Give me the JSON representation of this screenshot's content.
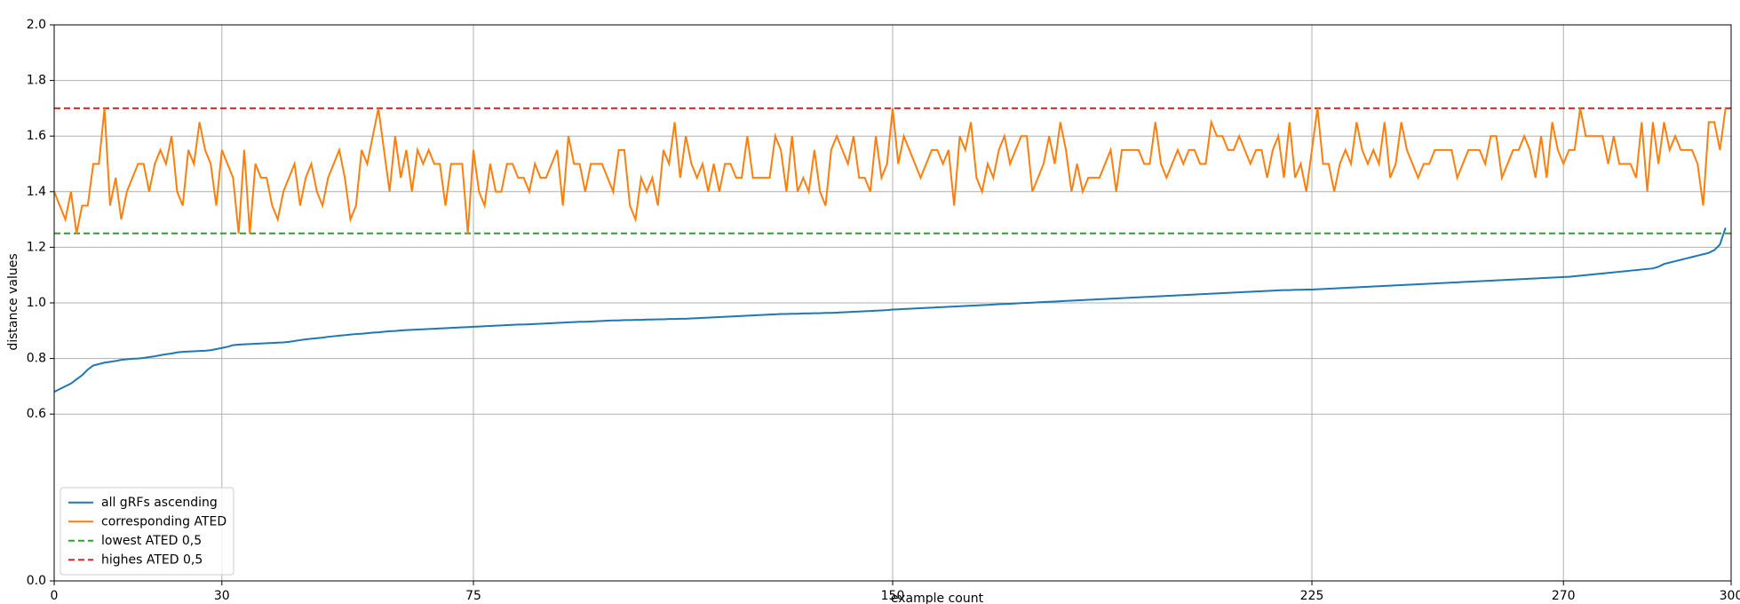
{
  "chart_data": {
    "type": "line",
    "xlabel": "example count",
    "ylabel": "distance values",
    "xlim": [
      0,
      300
    ],
    "xticks": [
      0,
      30,
      75,
      150,
      225,
      270,
      300
    ],
    "ylim": [
      0,
      2
    ],
    "yticks": [
      {
        "value": 0,
        "label": "0.0"
      },
      0.6,
      0.8,
      {
        "value": 1,
        "label": "1.0"
      },
      1.2,
      1.4,
      1.6,
      1.8,
      {
        "value": 2,
        "label": "2.0"
      }
    ],
    "grid": true,
    "legend": "lower left",
    "x": [
      0,
      1,
      2,
      3,
      4,
      5,
      6,
      7,
      8,
      9,
      10,
      11,
      12,
      13,
      14,
      15,
      16,
      17,
      18,
      19,
      20,
      21,
      22,
      23,
      24,
      25,
      26,
      27,
      28,
      29,
      30,
      31,
      32,
      33,
      34,
      35,
      36,
      37,
      38,
      39,
      40,
      41,
      42,
      43,
      44,
      45,
      46,
      47,
      48,
      49,
      50,
      51,
      52,
      53,
      54,
      55,
      56,
      57,
      58,
      59,
      60,
      61,
      62,
      63,
      64,
      65,
      66,
      67,
      68,
      69,
      70,
      71,
      72,
      73,
      74,
      75,
      76,
      77,
      78,
      79,
      80,
      81,
      82,
      83,
      84,
      85,
      86,
      87,
      88,
      89,
      90,
      91,
      92,
      93,
      94,
      95,
      96,
      97,
      98,
      99,
      100,
      101,
      102,
      103,
      104,
      105,
      106,
      107,
      108,
      109,
      110,
      111,
      112,
      113,
      114,
      115,
      116,
      117,
      118,
      119,
      120,
      121,
      122,
      123,
      124,
      125,
      126,
      127,
      128,
      129,
      130,
      131,
      132,
      133,
      134,
      135,
      136,
      137,
      138,
      139,
      140,
      141,
      142,
      143,
      144,
      145,
      146,
      147,
      148,
      149,
      150,
      151,
      152,
      153,
      154,
      155,
      156,
      157,
      158,
      159,
      160,
      161,
      162,
      163,
      164,
      165,
      166,
      167,
      168,
      169,
      170,
      171,
      172,
      173,
      174,
      175,
      176,
      177,
      178,
      179,
      180,
      181,
      182,
      183,
      184,
      185,
      186,
      187,
      188,
      189,
      190,
      191,
      192,
      193,
      194,
      195,
      196,
      197,
      198,
      199,
      200,
      201,
      202,
      203,
      204,
      205,
      206,
      207,
      208,
      209,
      210,
      211,
      212,
      213,
      214,
      215,
      216,
      217,
      218,
      219,
      220,
      221,
      222,
      223,
      224,
      225,
      226,
      227,
      228,
      229,
      230,
      231,
      232,
      233,
      234,
      235,
      236,
      237,
      238,
      239,
      240,
      241,
      242,
      243,
      244,
      245,
      246,
      247,
      248,
      249,
      250,
      251,
      252,
      253,
      254,
      255,
      256,
      257,
      258,
      259,
      260,
      261,
      262,
      263,
      264,
      265,
      266,
      267,
      268,
      269,
      270,
      271,
      272,
      273,
      274,
      275,
      276,
      277,
      278,
      279,
      280,
      281,
      282,
      283,
      284,
      285,
      286,
      287,
      288,
      289,
      290,
      291,
      292,
      293,
      294,
      295,
      296,
      297,
      298,
      299
    ],
    "series": [
      {
        "name": "all gRFs ascending",
        "color": "#1f77b4",
        "values": [
          0.68,
          0.69,
          0.7,
          0.71,
          0.725,
          0.74,
          0.76,
          0.775,
          0.78,
          0.785,
          0.788,
          0.791,
          0.795,
          0.797,
          0.799,
          0.8,
          0.802,
          0.805,
          0.808,
          0.812,
          0.815,
          0.818,
          0.822,
          0.824,
          0.825,
          0.826,
          0.827,
          0.828,
          0.83,
          0.834,
          0.838,
          0.842,
          0.848,
          0.85,
          0.851,
          0.852,
          0.853,
          0.854,
          0.855,
          0.856,
          0.857,
          0.858,
          0.86,
          0.863,
          0.866,
          0.869,
          0.871,
          0.873,
          0.875,
          0.878,
          0.88,
          0.882,
          0.884,
          0.886,
          0.888,
          0.889,
          0.891,
          0.893,
          0.894,
          0.896,
          0.898,
          0.899,
          0.901,
          0.902,
          0.903,
          0.904,
          0.905,
          0.906,
          0.907,
          0.908,
          0.909,
          0.91,
          0.911,
          0.912,
          0.913,
          0.914,
          0.915,
          0.916,
          0.917,
          0.918,
          0.919,
          0.92,
          0.921,
          0.922,
          0.922,
          0.923,
          0.924,
          0.925,
          0.926,
          0.927,
          0.928,
          0.929,
          0.93,
          0.931,
          0.932,
          0.932,
          0.933,
          0.934,
          0.935,
          0.936,
          0.937,
          0.937,
          0.938,
          0.938,
          0.939,
          0.939,
          0.94,
          0.94,
          0.941,
          0.941,
          0.942,
          0.942,
          0.943,
          0.943,
          0.944,
          0.945,
          0.946,
          0.947,
          0.948,
          0.949,
          0.95,
          0.951,
          0.952,
          0.953,
          0.954,
          0.955,
          0.956,
          0.957,
          0.958,
          0.959,
          0.96,
          0.96,
          0.961,
          0.961,
          0.962,
          0.962,
          0.963,
          0.963,
          0.964,
          0.964,
          0.965,
          0.966,
          0.967,
          0.968,
          0.969,
          0.97,
          0.971,
          0.972,
          0.973,
          0.974,
          0.976,
          0.977,
          0.978,
          0.979,
          0.98,
          0.981,
          0.982,
          0.983,
          0.984,
          0.985,
          0.986,
          0.987,
          0.988,
          0.989,
          0.99,
          0.991,
          0.992,
          0.993,
          0.994,
          0.995,
          0.996,
          0.997,
          0.998,
          0.999,
          1.0,
          1.001,
          1.002,
          1.003,
          1.004,
          1.005,
          1.006,
          1.007,
          1.008,
          1.009,
          1.01,
          1.011,
          1.012,
          1.013,
          1.014,
          1.015,
          1.016,
          1.017,
          1.018,
          1.019,
          1.02,
          1.021,
          1.022,
          1.023,
          1.024,
          1.025,
          1.026,
          1.027,
          1.028,
          1.029,
          1.03,
          1.031,
          1.032,
          1.033,
          1.034,
          1.035,
          1.036,
          1.037,
          1.038,
          1.039,
          1.04,
          1.041,
          1.042,
          1.043,
          1.044,
          1.045,
          1.046,
          1.046,
          1.047,
          1.047,
          1.048,
          1.048,
          1.049,
          1.05,
          1.051,
          1.052,
          1.053,
          1.054,
          1.055,
          1.056,
          1.057,
          1.058,
          1.059,
          1.06,
          1.061,
          1.062,
          1.063,
          1.064,
          1.065,
          1.066,
          1.067,
          1.068,
          1.069,
          1.07,
          1.071,
          1.072,
          1.073,
          1.074,
          1.075,
          1.076,
          1.077,
          1.078,
          1.079,
          1.08,
          1.081,
          1.082,
          1.083,
          1.084,
          1.085,
          1.086,
          1.087,
          1.088,
          1.089,
          1.09,
          1.091,
          1.092,
          1.093,
          1.094,
          1.096,
          1.098,
          1.1,
          1.102,
          1.104,
          1.106,
          1.108,
          1.11,
          1.112,
          1.114,
          1.116,
          1.118,
          1.12,
          1.122,
          1.124,
          1.13,
          1.14,
          1.145,
          1.15,
          1.155,
          1.16,
          1.165,
          1.17,
          1.175,
          1.18,
          1.19,
          1.21,
          1.27
        ]
      },
      {
        "name": "corresponding ATED",
        "color": "#ff7f0e",
        "values": [
          1.4,
          1.35,
          1.3,
          1.4,
          1.25,
          1.35,
          1.35,
          1.5,
          1.5,
          1.7,
          1.35,
          1.45,
          1.3,
          1.4,
          1.45,
          1.5,
          1.5,
          1.4,
          1.5,
          1.55,
          1.5,
          1.6,
          1.4,
          1.35,
          1.55,
          1.5,
          1.65,
          1.55,
          1.5,
          1.35,
          1.55,
          1.5,
          1.45,
          1.25,
          1.55,
          1.25,
          1.5,
          1.45,
          1.45,
          1.35,
          1.3,
          1.4,
          1.45,
          1.5,
          1.35,
          1.45,
          1.5,
          1.4,
          1.35,
          1.45,
          1.5,
          1.55,
          1.45,
          1.3,
          1.35,
          1.55,
          1.5,
          1.6,
          1.7,
          1.55,
          1.4,
          1.6,
          1.45,
          1.55,
          1.4,
          1.55,
          1.5,
          1.55,
          1.5,
          1.5,
          1.35,
          1.5,
          1.5,
          1.5,
          1.25,
          1.55,
          1.4,
          1.35,
          1.5,
          1.4,
          1.4,
          1.5,
          1.5,
          1.45,
          1.45,
          1.4,
          1.5,
          1.45,
          1.45,
          1.5,
          1.55,
          1.35,
          1.6,
          1.5,
          1.5,
          1.4,
          1.5,
          1.5,
          1.5,
          1.45,
          1.4,
          1.55,
          1.55,
          1.35,
          1.3,
          1.45,
          1.4,
          1.45,
          1.35,
          1.55,
          1.5,
          1.65,
          1.45,
          1.6,
          1.5,
          1.45,
          1.5,
          1.4,
          1.5,
          1.4,
          1.5,
          1.5,
          1.45,
          1.45,
          1.6,
          1.45,
          1.45,
          1.45,
          1.45,
          1.6,
          1.55,
          1.4,
          1.6,
          1.4,
          1.45,
          1.4,
          1.55,
          1.4,
          1.35,
          1.55,
          1.6,
          1.55,
          1.5,
          1.6,
          1.45,
          1.45,
          1.4,
          1.6,
          1.45,
          1.5,
          1.7,
          1.5,
          1.6,
          1.55,
          1.5,
          1.45,
          1.5,
          1.55,
          1.55,
          1.5,
          1.55,
          1.35,
          1.6,
          1.55,
          1.65,
          1.45,
          1.4,
          1.5,
          1.45,
          1.55,
          1.6,
          1.5,
          1.55,
          1.6,
          1.6,
          1.4,
          1.45,
          1.5,
          1.6,
          1.5,
          1.65,
          1.55,
          1.4,
          1.5,
          1.4,
          1.45,
          1.45,
          1.45,
          1.5,
          1.55,
          1.4,
          1.55,
          1.55,
          1.55,
          1.55,
          1.5,
          1.5,
          1.65,
          1.5,
          1.45,
          1.5,
          1.55,
          1.5,
          1.55,
          1.55,
          1.5,
          1.5,
          1.65,
          1.6,
          1.6,
          1.55,
          1.55,
          1.6,
          1.55,
          1.5,
          1.55,
          1.55,
          1.45,
          1.55,
          1.6,
          1.45,
          1.65,
          1.45,
          1.5,
          1.4,
          1.55,
          1.7,
          1.5,
          1.5,
          1.4,
          1.5,
          1.55,
          1.5,
          1.65,
          1.55,
          1.5,
          1.55,
          1.5,
          1.65,
          1.45,
          1.5,
          1.65,
          1.55,
          1.5,
          1.45,
          1.5,
          1.5,
          1.55,
          1.55,
          1.55,
          1.55,
          1.45,
          1.5,
          1.55,
          1.55,
          1.55,
          1.5,
          1.6,
          1.6,
          1.45,
          1.5,
          1.55,
          1.55,
          1.6,
          1.55,
          1.45,
          1.6,
          1.45,
          1.65,
          1.55,
          1.5,
          1.55,
          1.55,
          1.7,
          1.6,
          1.6,
          1.6,
          1.6,
          1.5,
          1.6,
          1.5,
          1.5,
          1.5,
          1.45,
          1.65,
          1.4,
          1.65,
          1.5,
          1.65,
          1.55,
          1.6,
          1.55,
          1.55,
          1.55,
          1.5,
          1.35,
          1.65,
          1.65,
          1.55,
          1.7
        ]
      }
    ],
    "reference_lines": [
      {
        "name": "lowest ATED 0,5",
        "color": "#2ca02c",
        "value": 1.25,
        "dashed": true
      },
      {
        "name": "highes ATED 0,5",
        "color": "#d62728",
        "value": 1.7,
        "dashed": true
      }
    ]
  }
}
